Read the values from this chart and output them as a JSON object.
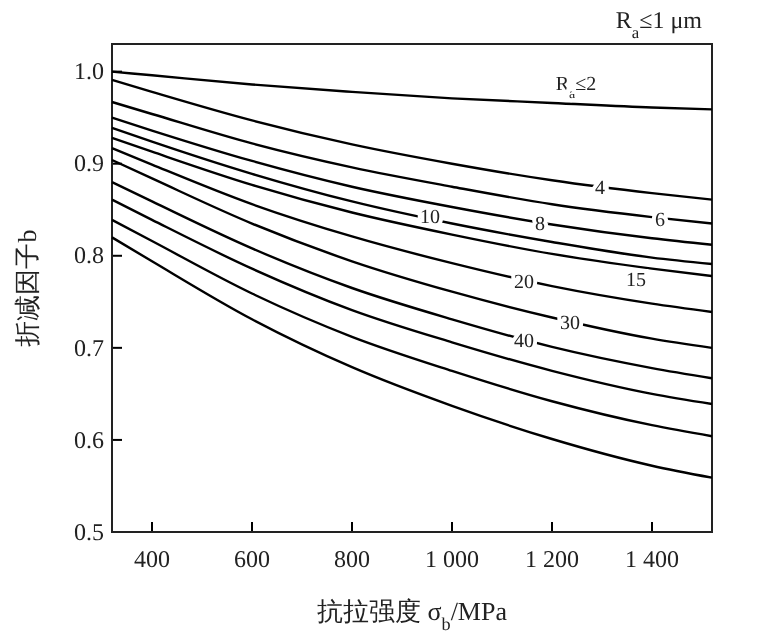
{
  "chart_data": {
    "type": "line",
    "xlabel": "抗拉强度 σ$_{b}$/MPa",
    "ylabel": "折减因子b",
    "x": [
      320,
      400,
      600,
      800,
      1000,
      1200,
      1400,
      1520
    ],
    "xlim": [
      320,
      1520
    ],
    "xticks": [
      400,
      600,
      800,
      {
        "value": 1000,
        "label": "1 000"
      },
      {
        "value": 1200,
        "label": "1 200"
      },
      {
        "value": 1400,
        "label": "1 400"
      }
    ],
    "ylim": [
      0.5,
      1.03
    ],
    "yticks": [
      0.5,
      0.6,
      0.7,
      0.8,
      0.9,
      {
        "value": 1.0,
        "label": "1.0"
      }
    ],
    "annotations": [
      "R$_{a}$≤1 μm"
    ],
    "series": [
      {
        "name": "R$_{a}$≤2",
        "color": "#000000",
        "values": [
          1.0,
          0.996,
          0.986,
          0.978,
          0.971,
          0.966,
          0.961,
          0.959
        ]
      },
      {
        "name": "4",
        "color": "#000000",
        "values": [
          0.991,
          0.978,
          0.947,
          0.921,
          0.9,
          0.882,
          0.868,
          0.861
        ]
      },
      {
        "name": "6",
        "color": "#000000",
        "values": [
          0.967,
          0.954,
          0.922,
          0.896,
          0.875,
          0.856,
          0.842,
          0.835
        ]
      },
      {
        "name": "8",
        "color": "#000000",
        "values": [
          0.95,
          0.936,
          0.903,
          0.875,
          0.853,
          0.834,
          0.819,
          0.812
        ]
      },
      {
        "name": "10",
        "color": "#000000",
        "values": [
          0.939,
          0.924,
          0.889,
          0.859,
          0.835,
          0.815,
          0.798,
          0.791
        ]
      },
      {
        "name": "15",
        "color": "#000000",
        "values": [
          0.928,
          0.913,
          0.877,
          0.847,
          0.823,
          0.802,
          0.786,
          0.778
        ]
      },
      {
        "name": "20",
        "color": "#000000",
        "values": [
          0.917,
          0.899,
          0.856,
          0.821,
          0.792,
          0.767,
          0.748,
          0.739
        ]
      },
      {
        "name": "30",
        "color": "#000000",
        "values": [
          0.904,
          0.884,
          0.835,
          0.794,
          0.761,
          0.733,
          0.71,
          0.7
        ]
      },
      {
        "name": "40",
        "color": "#000000",
        "values": [
          0.88,
          0.859,
          0.808,
          0.765,
          0.731,
          0.701,
          0.678,
          0.667
        ]
      },
      {
        "color": "#000000",
        "values": [
          0.861,
          0.839,
          0.786,
          0.741,
          0.706,
          0.675,
          0.65,
          0.639
        ]
      },
      {
        "color": "#000000",
        "values": [
          0.839,
          0.816,
          0.759,
          0.712,
          0.675,
          0.642,
          0.616,
          0.604
        ]
      },
      {
        "color": "#000000",
        "values": [
          0.82,
          0.794,
          0.731,
          0.679,
          0.637,
          0.601,
          0.572,
          0.559
        ]
      }
    ],
    "marker": "none",
    "line_style": "solid",
    "grid": false
  }
}
